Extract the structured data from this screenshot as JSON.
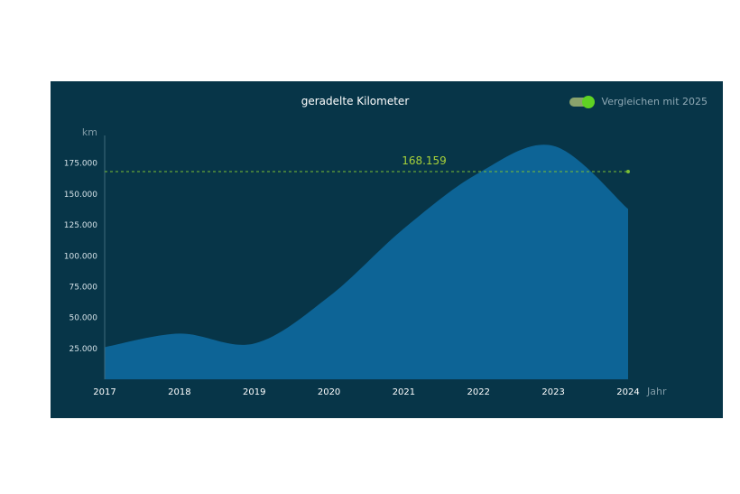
{
  "header": {
    "title": "geradelte Kilometer",
    "toggle_label": "Vergleichen mit 2025",
    "toggle_on": true
  },
  "colors": {
    "panel_bg": "#073548",
    "area_fill": "#0d6496",
    "reference_line": "#7bbf34",
    "reference_label": "#a7d13a",
    "toggle_knob": "#5fd223"
  },
  "chart_data": {
    "type": "area",
    "title": "geradelte Kilometer",
    "xlabel": "Jahr",
    "ylabel": "km",
    "x": [
      "2017",
      "2018",
      "2019",
      "2020",
      "2021",
      "2022",
      "2023",
      "2024"
    ],
    "series": [
      {
        "values": [
          26000,
          37000,
          29000,
          67000,
          122000,
          167000,
          189000,
          138000
        ]
      }
    ],
    "reference_line": {
      "value": 168159,
      "label": "168.159"
    },
    "ylim": [
      0,
      200000
    ],
    "yticks": [
      {
        "value": 25000,
        "label": "25.000"
      },
      {
        "value": 50000,
        "label": "50.000"
      },
      {
        "value": 75000,
        "label": "75.000"
      },
      {
        "value": 100000,
        "label": "100.000"
      },
      {
        "value": 125000,
        "label": "125.000"
      },
      {
        "value": 150000,
        "label": "150.000"
      },
      {
        "value": 175000,
        "label": "175.000"
      }
    ],
    "grid": false,
    "legend": "none"
  }
}
